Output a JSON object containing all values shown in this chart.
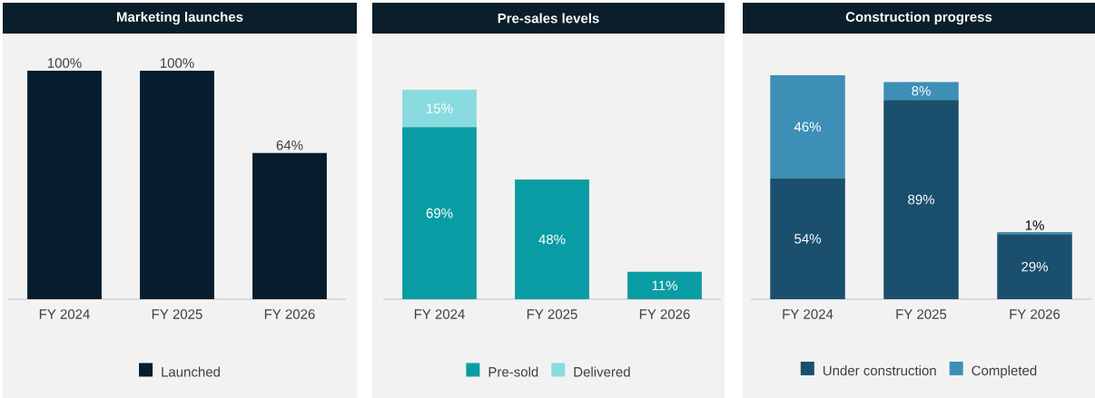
{
  "chart_data": [
    {
      "type": "bar",
      "title": "Marketing launches",
      "categories": [
        "FY 2024",
        "FY 2025",
        "FY 2026"
      ],
      "legend": "bottom",
      "series": [
        {
          "name": "Launched",
          "color": "#071c2c",
          "values": [
            100,
            100,
            64
          ],
          "value_labels": [
            "100%",
            "100%",
            "64%"
          ]
        }
      ]
    },
    {
      "type": "bar",
      "title": "Pre-sales levels",
      "categories": [
        "FY 2024",
        "FY 2025",
        "FY 2026"
      ],
      "stacked": true,
      "legend": "bottom",
      "series": [
        {
          "name": "Pre-sold",
          "color": "#0a9ca4",
          "values": [
            69,
            48,
            11
          ],
          "value_labels": [
            "69%",
            "48%",
            "11%"
          ]
        },
        {
          "name": "Delivered",
          "color": "#8adbe0",
          "values": [
            15,
            null,
            null
          ],
          "value_labels": [
            "15%",
            null,
            null
          ]
        }
      ]
    },
    {
      "type": "bar",
      "title": "Construction progress",
      "categories": [
        "FY 2024",
        "FY 2025",
        "FY 2026"
      ],
      "stacked": true,
      "legend": "bottom",
      "series": [
        {
          "name": "Under construction",
          "color": "#1a4f6e",
          "values": [
            54,
            89,
            29
          ],
          "value_labels": [
            "54%",
            "89%",
            "29%"
          ]
        },
        {
          "name": "Completed",
          "color": "#3d8fb6",
          "values": [
            46,
            8,
            1
          ],
          "value_labels": [
            "46%",
            "8%",
            "1%"
          ]
        }
      ]
    }
  ]
}
